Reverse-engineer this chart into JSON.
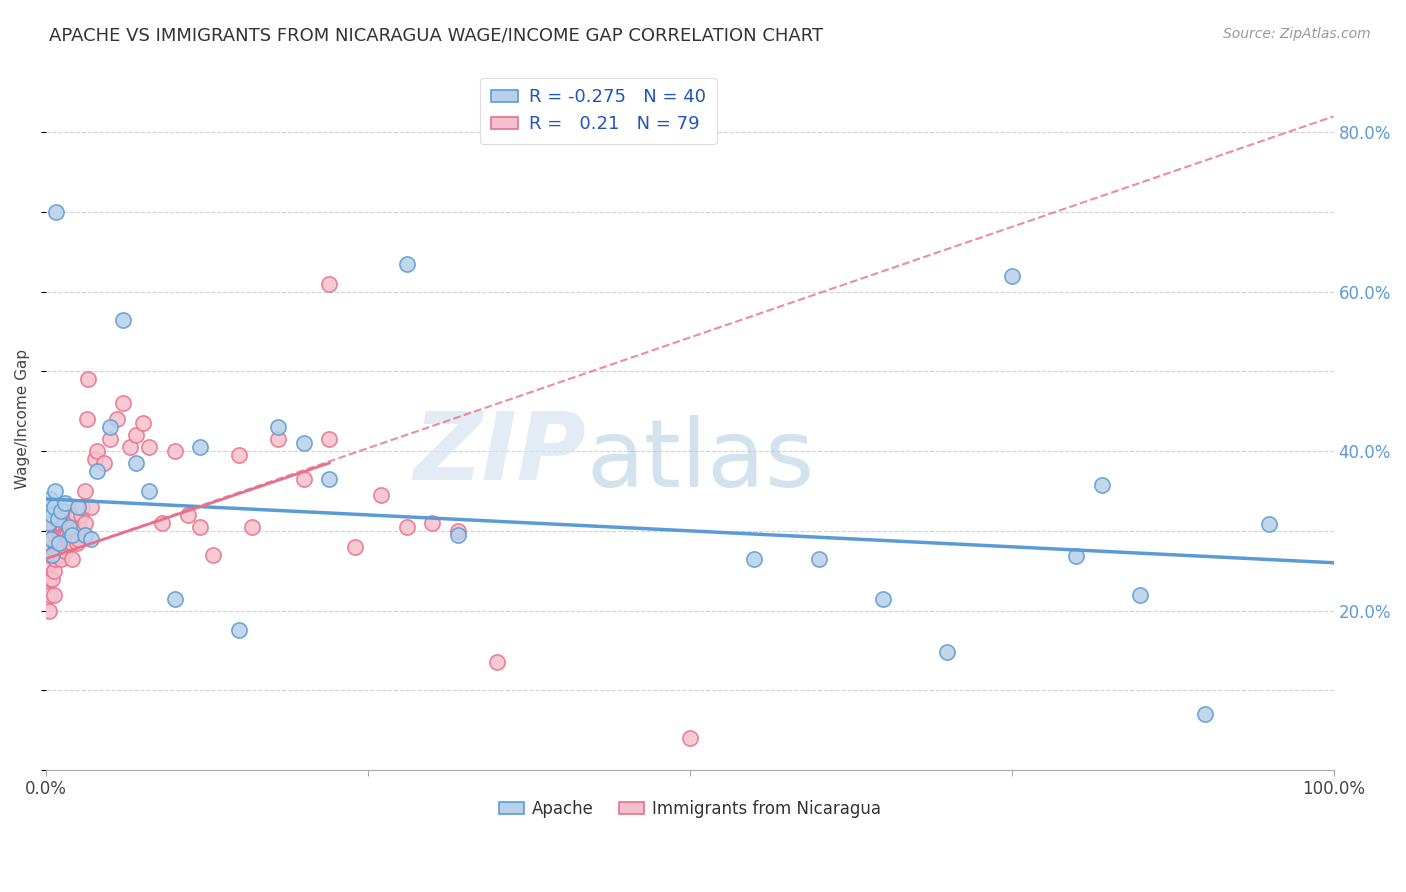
{
  "title": "APACHE VS IMMIGRANTS FROM NICARAGUA WAGE/INCOME GAP CORRELATION CHART",
  "source": "Source: ZipAtlas.com",
  "ylabel": "Wage/Income Gap",
  "right_yticks": [
    "80.0%",
    "60.0%",
    "40.0%",
    "20.0%"
  ],
  "right_ytick_vals": [
    0.8,
    0.6,
    0.4,
    0.2
  ],
  "xlim": [
    0.0,
    1.0
  ],
  "ylim": [
    0.0,
    0.88
  ],
  "apache_color": "#b8d0e8",
  "apache_edge_color": "#5b9bd5",
  "nicaragua_color": "#f5c0ce",
  "nicaragua_edge_color": "#e8708a",
  "apache_R": -0.275,
  "apache_N": 40,
  "nicaragua_R": 0.21,
  "nicaragua_N": 79,
  "legend_label_apache": "Apache",
  "legend_label_nicaragua": "Immigrants from Nicaragua",
  "watermark_zip": "ZIP",
  "watermark_atlas": "atlas",
  "apache_scatter_x": [
    0.002,
    0.003,
    0.004,
    0.005,
    0.005,
    0.006,
    0.007,
    0.008,
    0.009,
    0.01,
    0.012,
    0.015,
    0.018,
    0.02,
    0.025,
    0.03,
    0.035,
    0.04,
    0.05,
    0.06,
    0.07,
    0.08,
    0.1,
    0.12,
    0.15,
    0.18,
    0.2,
    0.22,
    0.28,
    0.32,
    0.55,
    0.6,
    0.65,
    0.7,
    0.75,
    0.8,
    0.82,
    0.85,
    0.9,
    0.95
  ],
  "apache_scatter_y": [
    0.31,
    0.34,
    0.29,
    0.32,
    0.27,
    0.33,
    0.35,
    0.7,
    0.315,
    0.285,
    0.325,
    0.335,
    0.305,
    0.295,
    0.33,
    0.295,
    0.29,
    0.375,
    0.43,
    0.565,
    0.385,
    0.35,
    0.215,
    0.405,
    0.175,
    0.43,
    0.41,
    0.365,
    0.635,
    0.295,
    0.265,
    0.265,
    0.215,
    0.148,
    0.62,
    0.268,
    0.358,
    0.22,
    0.07,
    0.308
  ],
  "nicaragua_scatter_x": [
    0.001,
    0.002,
    0.002,
    0.003,
    0.003,
    0.004,
    0.004,
    0.005,
    0.005,
    0.005,
    0.006,
    0.006,
    0.006,
    0.007,
    0.007,
    0.007,
    0.008,
    0.008,
    0.009,
    0.009,
    0.01,
    0.01,
    0.011,
    0.011,
    0.012,
    0.012,
    0.013,
    0.013,
    0.014,
    0.014,
    0.015,
    0.015,
    0.016,
    0.017,
    0.018,
    0.019,
    0.02,
    0.02,
    0.021,
    0.022,
    0.023,
    0.024,
    0.025,
    0.026,
    0.027,
    0.028,
    0.03,
    0.03,
    0.032,
    0.033,
    0.035,
    0.038,
    0.04,
    0.045,
    0.05,
    0.055,
    0.06,
    0.065,
    0.07,
    0.075,
    0.08,
    0.09,
    0.1,
    0.11,
    0.12,
    0.13,
    0.15,
    0.16,
    0.18,
    0.2,
    0.22,
    0.24,
    0.26,
    0.28,
    0.3,
    0.32,
    0.35,
    0.22,
    0.5
  ],
  "nicaragua_scatter_y": [
    0.27,
    0.24,
    0.2,
    0.26,
    0.22,
    0.31,
    0.27,
    0.24,
    0.28,
    0.3,
    0.31,
    0.25,
    0.22,
    0.275,
    0.295,
    0.265,
    0.28,
    0.27,
    0.31,
    0.285,
    0.27,
    0.295,
    0.295,
    0.32,
    0.295,
    0.265,
    0.305,
    0.295,
    0.325,
    0.28,
    0.295,
    0.275,
    0.295,
    0.29,
    0.285,
    0.295,
    0.265,
    0.285,
    0.305,
    0.3,
    0.32,
    0.285,
    0.29,
    0.305,
    0.32,
    0.33,
    0.35,
    0.31,
    0.44,
    0.49,
    0.33,
    0.39,
    0.4,
    0.385,
    0.415,
    0.44,
    0.46,
    0.405,
    0.42,
    0.435,
    0.405,
    0.31,
    0.4,
    0.32,
    0.305,
    0.27,
    0.395,
    0.305,
    0.415,
    0.365,
    0.415,
    0.28,
    0.345,
    0.305,
    0.31,
    0.3,
    0.135,
    0.61,
    0.04
  ],
  "apache_line_x": [
    0.0,
    1.0
  ],
  "apache_line_y": [
    0.34,
    0.26
  ],
  "nicaragua_line_x": [
    0.0,
    1.0
  ],
  "nicaragua_line_y": [
    0.265,
    0.82
  ],
  "nicaragua_solid_line_x": [
    0.0,
    0.22
  ],
  "nicaragua_solid_line_y": [
    0.265,
    0.385
  ]
}
